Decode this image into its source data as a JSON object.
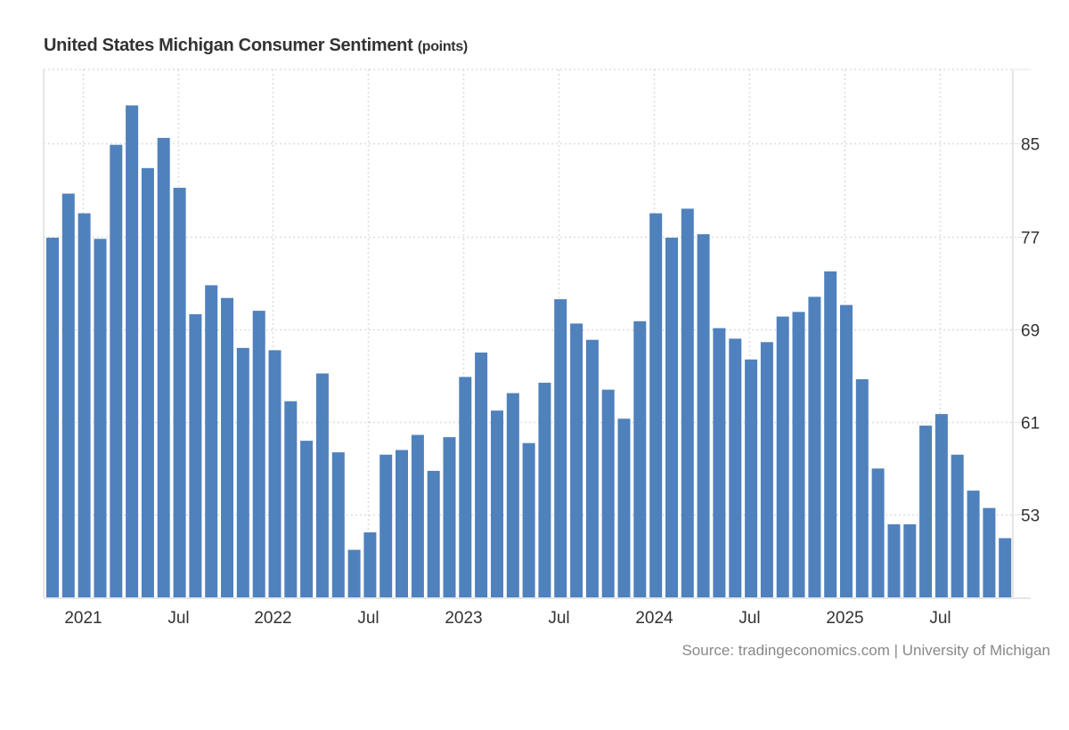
{
  "chart_data": {
    "type": "bar",
    "title": "United States Michigan Consumer Sentiment",
    "unit": "(points)",
    "xlabel": "",
    "ylabel": "",
    "bar_color": "#4f81bd",
    "grid": true,
    "y_axis_side": "right",
    "ylim": [
      45.9,
      91.4
    ],
    "y_ticks": [
      53,
      61,
      69,
      77,
      85
    ],
    "x_tick_labels": [
      {
        "label": "2021",
        "month_index": 2
      },
      {
        "label": "Jul",
        "month_index": 8
      },
      {
        "label": "2022",
        "month_index": 14
      },
      {
        "label": "Jul",
        "month_index": 20
      },
      {
        "label": "2023",
        "month_index": 26
      },
      {
        "label": "Jul",
        "month_index": 32
      },
      {
        "label": "2024",
        "month_index": 38
      },
      {
        "label": "Jul",
        "month_index": 44
      },
      {
        "label": "2025",
        "month_index": 50
      },
      {
        "label": "Jul",
        "month_index": 56
      }
    ],
    "categories": [
      "Nov 2020",
      "Dec 2020",
      "Jan 2021",
      "Feb 2021",
      "Mar 2021",
      "Apr 2021",
      "May 2021",
      "Jun 2021",
      "Jul 2021",
      "Aug 2021",
      "Sep 2021",
      "Oct 2021",
      "Nov 2021",
      "Dec 2021",
      "Jan 2022",
      "Feb 2022",
      "Mar 2022",
      "Apr 2022",
      "May 2022",
      "Jun 2022",
      "Jul 2022",
      "Aug 2022",
      "Sep 2022",
      "Oct 2022",
      "Nov 2022",
      "Dec 2022",
      "Jan 2023",
      "Feb 2023",
      "Mar 2023",
      "Apr 2023",
      "May 2023",
      "Jun 2023",
      "Jul 2023",
      "Aug 2023",
      "Sep 2023",
      "Oct 2023",
      "Nov 2023",
      "Dec 2023",
      "Jan 2024",
      "Feb 2024",
      "Mar 2024",
      "Apr 2024",
      "May 2024",
      "Jun 2024",
      "Jul 2024",
      "Aug 2024",
      "Sep 2024",
      "Oct 2024",
      "Nov 2024",
      "Dec 2024",
      "Jan 2025",
      "Feb 2025",
      "Mar 2025",
      "Apr 2025",
      "May 2025",
      "Jun 2025",
      "Jul 2025",
      "Aug 2025",
      "Sep 2025",
      "Oct 2025",
      "Nov 2025"
    ],
    "values": [
      76.9,
      80.7,
      79.0,
      76.8,
      84.9,
      88.3,
      82.9,
      85.5,
      81.2,
      70.3,
      72.8,
      71.7,
      67.4,
      70.6,
      67.2,
      62.8,
      59.4,
      65.2,
      58.4,
      50.0,
      51.5,
      58.2,
      58.6,
      59.9,
      56.8,
      59.7,
      64.9,
      67.0,
      62.0,
      63.5,
      59.2,
      64.4,
      71.6,
      69.5,
      68.1,
      63.8,
      61.3,
      69.7,
      79.0,
      76.9,
      79.4,
      77.2,
      69.1,
      68.2,
      66.4,
      67.9,
      70.1,
      70.5,
      71.8,
      74.0,
      71.1,
      64.7,
      57.0,
      52.2,
      52.2,
      60.7,
      61.7,
      58.2,
      55.1,
      53.6,
      51.0
    ],
    "source": "Source: tradingeconomics.com | University of Michigan"
  }
}
